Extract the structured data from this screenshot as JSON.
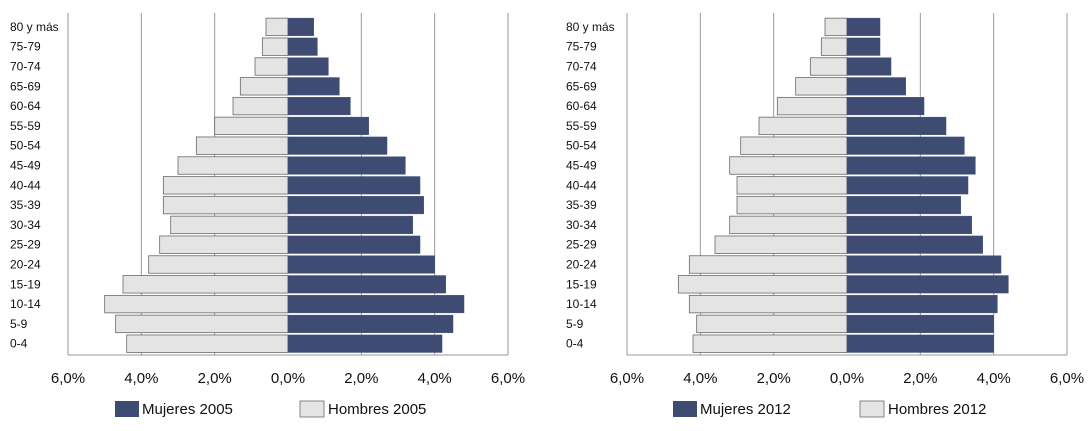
{
  "colors": {
    "mujeres": "#3e4c74",
    "hombres": "#e4e4e4",
    "bar_stroke": "#6a6a6a",
    "grid": "#9a9a9a"
  },
  "chart_data": [
    {
      "type": "bar",
      "orientation": "horizontal",
      "title": "",
      "categories": [
        "80 y más",
        "75-79",
        "70-74",
        "65-69",
        "60-64",
        "55-59",
        "50-54",
        "45-49",
        "40-44",
        "35-39",
        "30-34",
        "25-29",
        "20-24",
        "15-19",
        "10-14",
        "5-9",
        "0-4"
      ],
      "series": [
        {
          "name": "Mujeres 2005",
          "side": "right",
          "values": [
            0.7,
            0.8,
            1.1,
            1.4,
            1.7,
            2.2,
            2.7,
            3.2,
            3.6,
            3.7,
            3.4,
            3.6,
            4.0,
            4.3,
            4.8,
            4.5,
            4.2
          ]
        },
        {
          "name": "Hombres 2005",
          "side": "left",
          "values": [
            0.6,
            0.7,
            0.9,
            1.3,
            1.5,
            2.0,
            2.5,
            3.0,
            3.4,
            3.4,
            3.2,
            3.5,
            3.8,
            4.5,
            5.0,
            4.7,
            4.4
          ]
        }
      ],
      "xlim": [
        -6,
        6
      ],
      "xticks": [
        "6,0%",
        "4,0%",
        "2,0%",
        "0,0%",
        "2,0%",
        "4,0%",
        "6,0%"
      ],
      "grid": true,
      "legend": "bottom"
    },
    {
      "type": "bar",
      "orientation": "horizontal",
      "title": "",
      "categories": [
        "80 y más",
        "75-79",
        "70-74",
        "65-69",
        "60-64",
        "55-59",
        "50-54",
        "45-49",
        "40-44",
        "35-39",
        "30-34",
        "25-29",
        "20-24",
        "15-19",
        "10-14",
        "5-9",
        "0-4"
      ],
      "series": [
        {
          "name": "Mujeres 2012",
          "side": "right",
          "values": [
            0.9,
            0.9,
            1.2,
            1.6,
            2.1,
            2.7,
            3.2,
            3.5,
            3.3,
            3.1,
            3.4,
            3.7,
            4.2,
            4.4,
            4.1,
            4.0,
            4.0
          ]
        },
        {
          "name": "Hombres 2012",
          "side": "left",
          "values": [
            0.6,
            0.7,
            1.0,
            1.4,
            1.9,
            2.4,
            2.9,
            3.2,
            3.0,
            3.0,
            3.2,
            3.6,
            4.3,
            4.6,
            4.3,
            4.1,
            4.2
          ]
        }
      ],
      "xlim": [
        -6,
        6
      ],
      "xticks": [
        "6,0%",
        "4,0%",
        "2,0%",
        "0,0%",
        "2,0%",
        "4,0%",
        "6,0%"
      ],
      "grid": true,
      "legend": "bottom"
    }
  ]
}
